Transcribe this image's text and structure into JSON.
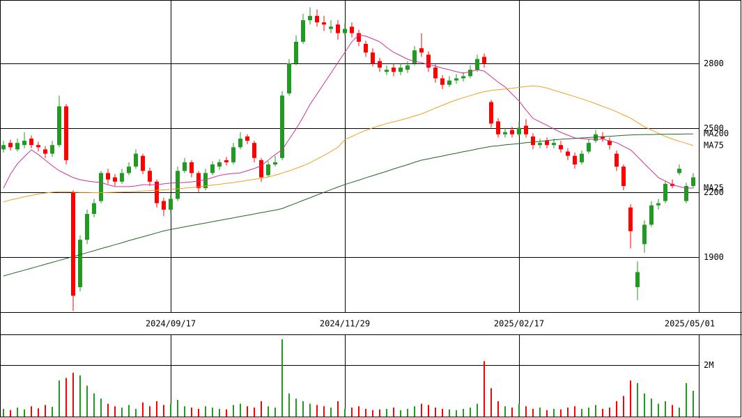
{
  "chart_data": [
    {
      "type": "candlestick",
      "categories": [
        null,
        null,
        null,
        null,
        null,
        null,
        null,
        null,
        null,
        null,
        null,
        null,
        null,
        null,
        null,
        null,
        null,
        null,
        null,
        null,
        null,
        null,
        null,
        null,
        "2024/09/17",
        null,
        null,
        null,
        null,
        null,
        null,
        null,
        null,
        null,
        null,
        null,
        null,
        null,
        null,
        null,
        null,
        null,
        null,
        null,
        null,
        null,
        null,
        null,
        null,
        "2024/11/29",
        null,
        null,
        null,
        null,
        null,
        null,
        null,
        null,
        null,
        null,
        null,
        null,
        null,
        null,
        null,
        null,
        null,
        null,
        null,
        null,
        null,
        null,
        null,
        null,
        "2025/02/17",
        null,
        null,
        null,
        null,
        null,
        null,
        null,
        null,
        null,
        null,
        null,
        null,
        null,
        null,
        null,
        null,
        null,
        null,
        null,
        null,
        null,
        null,
        null,
        null,
        "2025/05/01"
      ],
      "open": [
        2400,
        2430,
        2400,
        2420,
        2450,
        2420,
        2400,
        2380,
        2420,
        2600,
        2200,
        1760,
        1980,
        2100,
        2160,
        2290,
        2270,
        2250,
        2290,
        2320,
        2370,
        2300,
        2250,
        2160,
        2120,
        2170,
        2300,
        2340,
        2290,
        2220,
        2290,
        2320,
        2350,
        2340,
        2410,
        2460,
        2430,
        2350,
        2280,
        2330,
        2360,
        2660,
        2800,
        2900,
        3000,
        3020,
        2990,
        2960,
        2980,
        2940,
        2970,
        2940,
        2890,
        2850,
        2810,
        2760,
        2780,
        2760,
        2770,
        2800,
        2870,
        2840,
        2780,
        2730,
        2700,
        2720,
        2730,
        2740,
        2770,
        2830,
        2620,
        2530,
        2470,
        2490,
        2470,
        2510,
        2460,
        2420,
        2440,
        2420,
        2420,
        2390,
        2370,
        2340,
        2390,
        2440,
        2460,
        2440,
        2380,
        2320,
        2130,
        1760,
        1960,
        2050,
        2140,
        2160,
        2240,
        2290,
        2160,
        2230
      ],
      "high": [
        2440,
        2445,
        2450,
        2480,
        2465,
        2435,
        2415,
        2440,
        2650,
        2610,
        2210,
        2000,
        2120,
        2170,
        2300,
        2310,
        2285,
        2310,
        2340,
        2400,
        2380,
        2315,
        2260,
        2175,
        2190,
        2320,
        2360,
        2350,
        2300,
        2310,
        2345,
        2355,
        2365,
        2430,
        2480,
        2470,
        2440,
        2360,
        2345,
        2370,
        2670,
        2820,
        2930,
        3030,
        3060,
        3050,
        3020,
        3000,
        3000,
        2985,
        2990,
        2955,
        2905,
        2870,
        2825,
        2790,
        2800,
        2800,
        2810,
        2880,
        2940,
        2855,
        2795,
        2745,
        2740,
        2750,
        2760,
        2790,
        2840,
        2845,
        2630,
        2545,
        2500,
        2505,
        2530,
        2540,
        2475,
        2450,
        2455,
        2450,
        2440,
        2405,
        2385,
        2395,
        2450,
        2490,
        2480,
        2455,
        2395,
        2330,
        2145,
        1880,
        2070,
        2160,
        2170,
        2255,
        2260,
        2330,
        2245,
        2290
      ],
      "low": [
        2385,
        2395,
        2390,
        2405,
        2405,
        2390,
        2360,
        2365,
        2410,
        2330,
        1650,
        1740,
        1960,
        2085,
        2150,
        2240,
        2230,
        2240,
        2280,
        2310,
        2285,
        2230,
        2130,
        2090,
        2100,
        2160,
        2290,
        2270,
        2200,
        2210,
        2280,
        2305,
        2325,
        2330,
        2400,
        2425,
        2340,
        2250,
        2270,
        2320,
        2350,
        2650,
        2790,
        2890,
        2980,
        2970,
        2950,
        2940,
        2910,
        2925,
        2920,
        2880,
        2830,
        2785,
        2760,
        2745,
        2740,
        2745,
        2755,
        2790,
        2830,
        2760,
        2710,
        2680,
        2690,
        2705,
        2715,
        2730,
        2760,
        2780,
        2500,
        2455,
        2455,
        2455,
        2460,
        2455,
        2400,
        2405,
        2405,
        2405,
        2385,
        2350,
        2310,
        2330,
        2380,
        2430,
        2435,
        2400,
        2300,
        2210,
        1940,
        1700,
        1920,
        2040,
        2120,
        2150,
        2220,
        2280,
        2150,
        2220
      ],
      "close": [
        2420,
        2410,
        2430,
        2440,
        2420,
        2410,
        2380,
        2420,
        2600,
        2350,
        1720,
        1980,
        2100,
        2150,
        2290,
        2260,
        2250,
        2290,
        2320,
        2380,
        2300,
        2250,
        2150,
        2120,
        2170,
        2300,
        2340,
        2290,
        2220,
        2290,
        2330,
        2340,
        2340,
        2410,
        2450,
        2440,
        2360,
        2270,
        2330,
        2340,
        2650,
        2800,
        2900,
        3000,
        3020,
        2990,
        2980,
        2970,
        2940,
        2960,
        2940,
        2900,
        2850,
        2800,
        2780,
        2770,
        2760,
        2780,
        2790,
        2860,
        2850,
        2780,
        2730,
        2700,
        2720,
        2730,
        2740,
        2770,
        2820,
        2800,
        2520,
        2470,
        2480,
        2470,
        2500,
        2470,
        2420,
        2430,
        2420,
        2430,
        2400,
        2370,
        2330,
        2380,
        2430,
        2470,
        2450,
        2420,
        2320,
        2230,
        2020,
        1830,
        2050,
        2140,
        2150,
        2240,
        2230,
        2310,
        2230,
        2270
      ],
      "up_color": "#229922",
      "down_color": "#ff0000",
      "series": [
        {
          "name": "MA25",
          "color": "#cc3399",
          "values": [
            2220,
            2285,
            2333,
            2366,
            2398,
            2376,
            2350,
            2324,
            2301,
            2285,
            2269,
            2259,
            2253,
            2249,
            2246,
            2236,
            2227,
            2227,
            2227,
            2230,
            2236,
            2236,
            2236,
            2240,
            2243,
            2246,
            2246,
            2249,
            2253,
            2259,
            2269,
            2279,
            2285,
            2288,
            2291,
            2301,
            2311,
            2324,
            2350,
            2376,
            2398,
            2447,
            2495,
            2550,
            2609,
            2657,
            2706,
            2754,
            2803,
            2851,
            2900,
            2932,
            2926,
            2913,
            2900,
            2874,
            2851,
            2835,
            2819,
            2809,
            2803,
            2793,
            2787,
            2777,
            2770,
            2761,
            2754,
            2761,
            2770,
            2764,
            2738,
            2712,
            2690,
            2657,
            2625,
            2583,
            2544,
            2528,
            2512,
            2495,
            2479,
            2466,
            2453,
            2450,
            2447,
            2447,
            2447,
            2440,
            2431,
            2414,
            2398,
            2366,
            2333,
            2301,
            2269,
            2253,
            2236,
            2227,
            2220,
            2220
          ]
        },
        {
          "name": "MA75",
          "color": "#f0a020",
          "values": [
            2156,
            2165,
            2172,
            2180,
            2186,
            2192,
            2197,
            2201,
            2204,
            2204,
            2202,
            2200,
            2200,
            2199,
            2199,
            2200,
            2201,
            2202,
            2203,
            2205,
            2207,
            2208,
            2210,
            2212,
            2214,
            2217,
            2220,
            2223,
            2226,
            2230,
            2234,
            2238,
            2242,
            2246,
            2251,
            2256,
            2261,
            2266,
            2272,
            2280,
            2290,
            2300,
            2312,
            2324,
            2338,
            2355,
            2372,
            2390,
            2410,
            2445,
            2460,
            2475,
            2488,
            2500,
            2510,
            2520,
            2528,
            2536,
            2545,
            2555,
            2565,
            2578,
            2592,
            2605,
            2618,
            2630,
            2640,
            2650,
            2660,
            2668,
            2674,
            2677,
            2680,
            2684,
            2688,
            2692,
            2695,
            2692,
            2685,
            2675,
            2665,
            2655,
            2645,
            2635,
            2624,
            2612,
            2600,
            2588,
            2575,
            2560,
            2545,
            2525,
            2505,
            2490,
            2475,
            2460,
            2448,
            2438,
            2428,
            2418
          ]
        },
        {
          "name": "MA200",
          "color": "#226622",
          "values": [
            1812,
            1821,
            1830,
            1839,
            1848,
            1857,
            1866,
            1875,
            1884,
            1893,
            1902,
            1911,
            1920,
            1929,
            1939,
            1948,
            1957,
            1966,
            1976,
            1985,
            1994,
            2003,
            2012,
            2021,
            2028,
            2034,
            2040,
            2046,
            2052,
            2058,
            2064,
            2070,
            2076,
            2082,
            2088,
            2094,
            2100,
            2106,
            2112,
            2118,
            2125,
            2138,
            2150,
            2163,
            2175,
            2188,
            2200,
            2213,
            2225,
            2237,
            2247,
            2257,
            2268,
            2278,
            2288,
            2298,
            2309,
            2319,
            2329,
            2340,
            2350,
            2356,
            2363,
            2369,
            2376,
            2382,
            2389,
            2395,
            2402,
            2408,
            2414,
            2417,
            2421,
            2424,
            2427,
            2431,
            2434,
            2437,
            2441,
            2444,
            2447,
            2449,
            2451,
            2453,
            2455,
            2457,
            2459,
            2461,
            2463,
            2465,
            2467,
            2468,
            2469,
            2469,
            2470,
            2470,
            2471,
            2471,
            2472,
            2472
          ]
        }
      ],
      "ylim": [
        1644,
        3094
      ],
      "yticks": [
        1900,
        2200,
        2500,
        2800
      ],
      "grid": true
    },
    {
      "type": "bar",
      "values": [
        300000,
        250000,
        350000,
        280000,
        400000,
        320000,
        450000,
        380000,
        1400000,
        1500000,
        1700000,
        1600000,
        1200000,
        900000,
        700000,
        500000,
        400000,
        350000,
        450000,
        300000,
        550000,
        400000,
        600000,
        450000,
        500000,
        650000,
        400000,
        350000,
        300000,
        400000,
        350000,
        300000,
        280000,
        450000,
        500000,
        400000,
        350000,
        600000,
        400000,
        350000,
        3000000,
        900000,
        700000,
        600000,
        500000,
        450000,
        400000,
        350000,
        600000,
        300000,
        350000,
        400000,
        300000,
        250000,
        280000,
        300000,
        350000,
        250000,
        300000,
        400000,
        500000,
        450000,
        350000,
        300000,
        280000,
        250000,
        300000,
        350000,
        500000,
        2150000,
        1100000,
        600000,
        400000,
        350000,
        500000,
        400000,
        300000,
        350000,
        250000,
        300000,
        280000,
        350000,
        400000,
        300000,
        350000,
        450000,
        300000,
        350000,
        600000,
        800000,
        1400000,
        1300000,
        900000,
        700000,
        500000,
        600000,
        450000,
        350000,
        1300000,
        1000000
      ],
      "ylim": [
        0,
        3190000
      ],
      "yticks": [
        {
          "value": 2000000,
          "label": "2M"
        }
      ],
      "grid": true
    }
  ]
}
